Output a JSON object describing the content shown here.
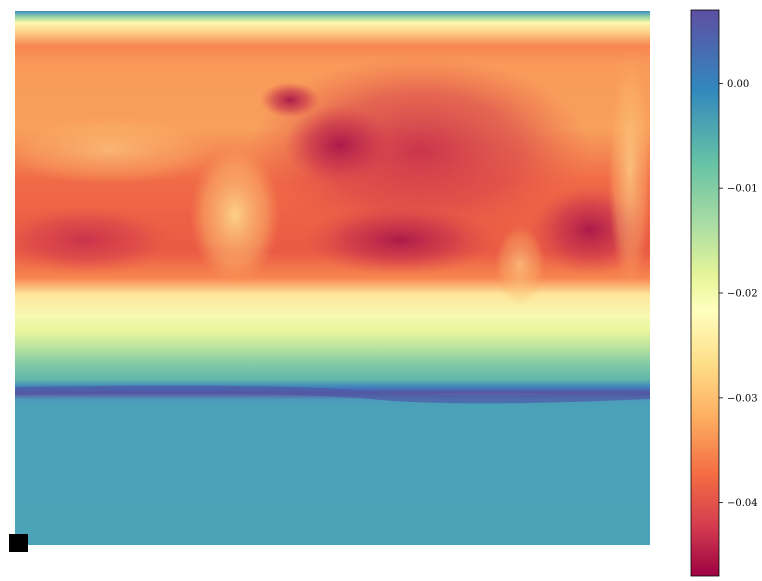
{
  "chart_data": {
    "type": "heatmap",
    "title": "",
    "xlabel": "",
    "ylabel": "",
    "colormap": "Spectral",
    "axes_visible": false,
    "grid": false,
    "colorbar": {
      "placement": "right",
      "range": [
        -0.047,
        0.007
      ],
      "ticks": [
        {
          "value": 0.0,
          "label": "0.00"
        },
        {
          "value": -0.01,
          "label": "−0.01"
        },
        {
          "value": -0.02,
          "label": "−0.02"
        },
        {
          "value": -0.03,
          "label": "−0.03"
        },
        {
          "value": -0.04,
          "label": "−0.04"
        }
      ]
    },
    "description_values": {
      "top_band": -0.028,
      "upper_body_min": -0.046,
      "mid_transition": -0.02,
      "thin_dark_band": 0.007,
      "lower_region": 0.0
    },
    "marker": "black-square"
  }
}
